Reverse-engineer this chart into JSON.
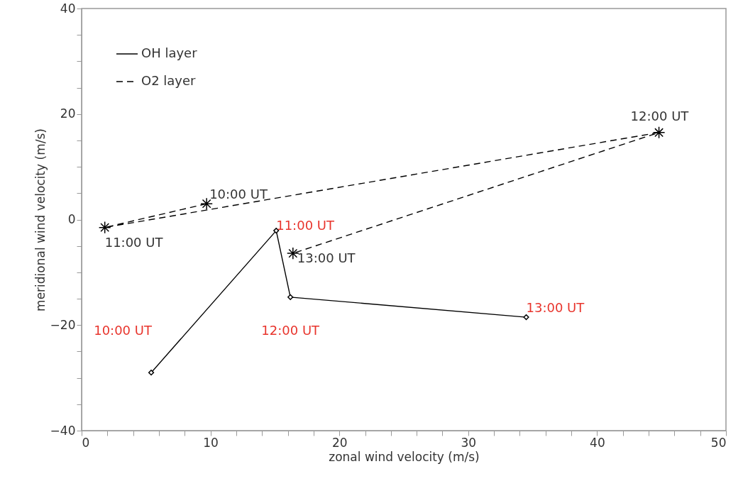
{
  "chart_data": {
    "type": "line",
    "xlabel": "zonal wind velocity (m/s)",
    "ylabel": "meridional wind velocity (m/s)",
    "xlim": [
      0,
      50
    ],
    "ylim": [
      -40,
      40
    ],
    "xticks": [
      0,
      {
        "value": 2,
        "label": null
      },
      {
        "value": 4,
        "label": null
      },
      {
        "value": 6,
        "label": null
      },
      {
        "value": 8,
        "label": null
      },
      10,
      {
        "value": 12,
        "label": null
      },
      {
        "value": 14,
        "label": null
      },
      {
        "value": 16,
        "label": null
      },
      {
        "value": 18,
        "label": null
      },
      20,
      {
        "value": 22,
        "label": null
      },
      {
        "value": 24,
        "label": null
      },
      {
        "value": 26,
        "label": null
      },
      {
        "value": 28,
        "label": null
      },
      30,
      {
        "value": 32,
        "label": null
      },
      {
        "value": 34,
        "label": null
      },
      {
        "value": 36,
        "label": null
      },
      {
        "value": 38,
        "label": null
      },
      40,
      {
        "value": 42,
        "label": null
      },
      {
        "value": 44,
        "label": null
      },
      {
        "value": 46,
        "label": null
      },
      {
        "value": 48,
        "label": null
      },
      50
    ],
    "yticks": [
      {
        "value": -40,
        "label": "−40"
      },
      {
        "value": -35,
        "label": null
      },
      {
        "value": -30,
        "label": null
      },
      {
        "value": -25,
        "label": null
      },
      {
        "value": -20,
        "label": "−20"
      },
      {
        "value": -15,
        "label": null
      },
      {
        "value": -10,
        "label": null
      },
      {
        "value": -5,
        "label": null
      },
      0,
      {
        "value": 5,
        "label": null
      },
      {
        "value": 10,
        "label": null
      },
      {
        "value": 15,
        "label": null
      },
      20,
      {
        "value": 25,
        "label": null
      },
      {
        "value": 30,
        "label": null
      },
      {
        "value": 35,
        "label": null
      },
      40
    ],
    "grid": false,
    "legend": "top left",
    "series": [
      {
        "name": "OH layer",
        "color": "#000000",
        "marker": "diamond",
        "line_style": "solid",
        "x": [
          5.4,
          15.1,
          16.2,
          34.5
        ],
        "values": [
          -29.0,
          -2.1,
          -14.7,
          -18.5
        ]
      },
      {
        "name": "O2 layer",
        "color": "#000000",
        "marker": "cross",
        "line_style": "dashed",
        "x": [
          9.7,
          1.8,
          44.8,
          16.4
        ],
        "values": [
          3.0,
          -1.5,
          16.5,
          -6.4
        ]
      }
    ],
    "annotations": [
      {
        "text": "10:00 UT",
        "x": 5.4,
        "y": -29.0
      },
      {
        "text": "11:00 UT",
        "x": 15.1,
        "y": -2.1
      },
      {
        "text": "12:00 UT",
        "x": 16.2,
        "y": -14.7
      },
      {
        "text": "13:00 UT",
        "x": 34.5,
        "y": -18.5
      },
      {
        "text": "10:00 UT",
        "x": 9.7,
        "y": 3.0
      },
      {
        "text": "11:00 UT",
        "x": 1.8,
        "y": -1.5
      },
      {
        "text": "12:00 UT",
        "x": 44.8,
        "y": 16.5
      },
      {
        "text": "13:00 UT",
        "x": 16.4,
        "y": -6.4
      }
    ]
  }
}
